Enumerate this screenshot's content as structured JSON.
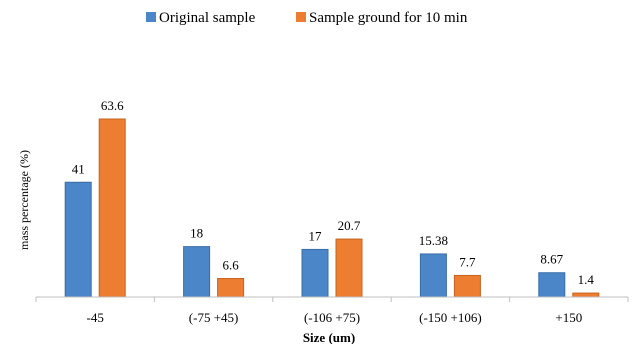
{
  "chart_data": {
    "type": "bar",
    "title": "",
    "xlabel": "Size (um)",
    "ylabel": "mass  percentage   (%)",
    "categories": [
      "-45",
      "(-75 +45)",
      "(-106 +75)",
      "(-150 +106)",
      "+150"
    ],
    "series": [
      {
        "name": "Original sample",
        "color": "#4a86c8",
        "edge": "#3a6ea5",
        "values": [
          41,
          18,
          17,
          15.38,
          8.67
        ],
        "labels": [
          "41",
          "18",
          "17",
          "15.38",
          "8.67"
        ]
      },
      {
        "name": "Sample ground for 10 min",
        "color": "#ed7d31",
        "edge": "#c5631f",
        "values": [
          63.6,
          6.6,
          20.7,
          7.7,
          1.4
        ],
        "labels": [
          "63.6",
          "6.6",
          "20.7",
          "7.7",
          "1.4"
        ]
      }
    ],
    "ylim": [
      0,
      70
    ],
    "grid": false,
    "legend": "top-center"
  }
}
